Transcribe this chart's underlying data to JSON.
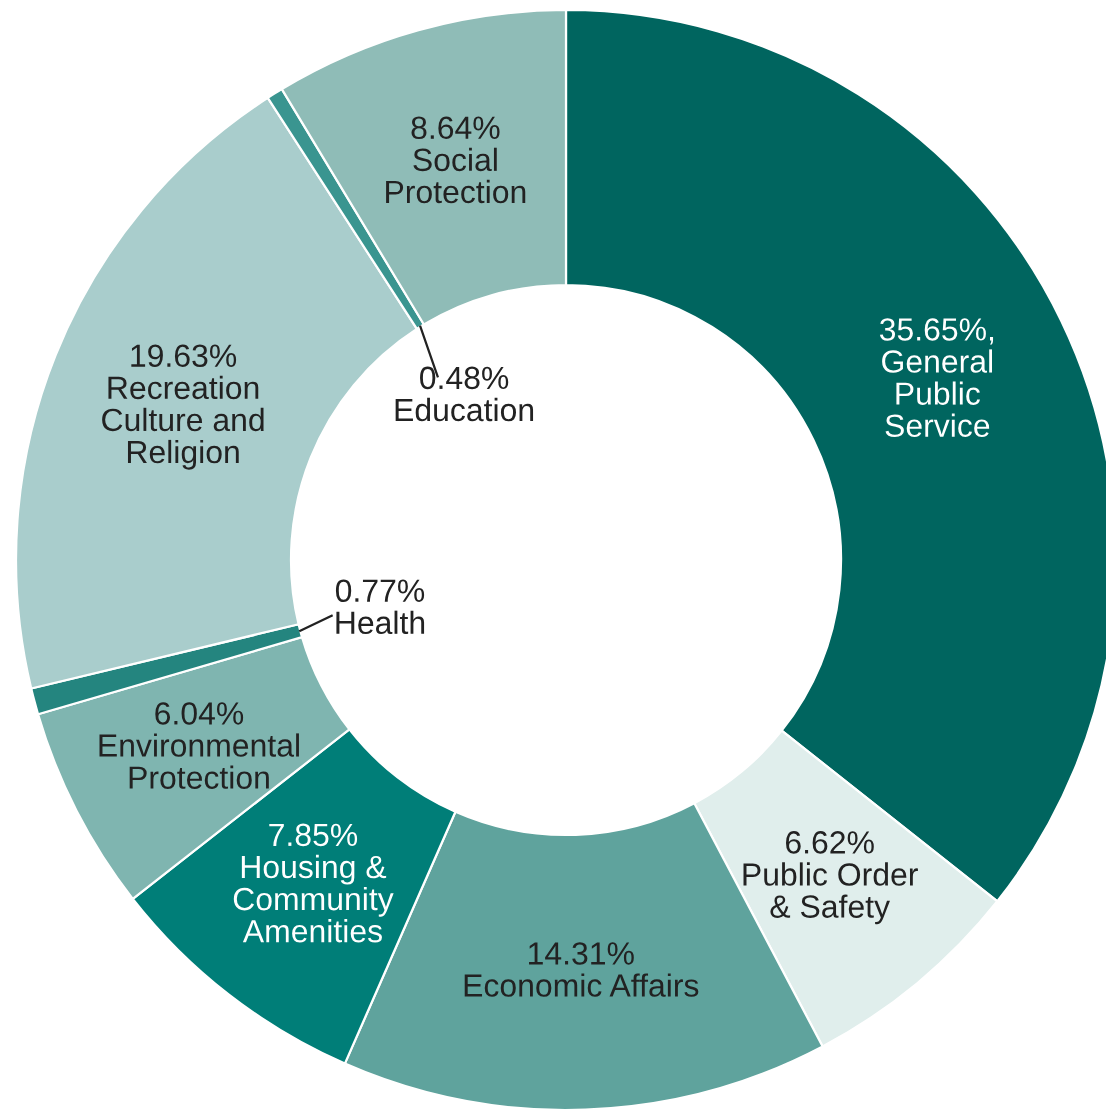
{
  "chart_data": {
    "type": "donut",
    "categories": [
      "General\nPublic\nService",
      "Public Order\n& Safety",
      "Economic Affairs",
      "Housing &\nCommunity\nAmenities",
      "Environmental\nProtection",
      "Health",
      "Recreation\nCulture and\nReligion",
      "Education",
      "Social\nProtection"
    ],
    "values": [
      35.65,
      6.62,
      14.31,
      7.85,
      6.04,
      0.77,
      19.63,
      0.48,
      8.64
    ],
    "value_labels": [
      "35.65%,",
      "6.62%",
      "14.31%",
      "7.85%",
      "6.04%",
      "0.77%",
      "19.63%",
      "0.48%",
      "8.64%"
    ],
    "colors": [
      "#00655f",
      "#e0eeec",
      "#5fa39d",
      "#007e78",
      "#7fb5b0",
      "#24857f",
      "#a9cdcc",
      "#3a9590",
      "#8fbcb7"
    ]
  }
}
